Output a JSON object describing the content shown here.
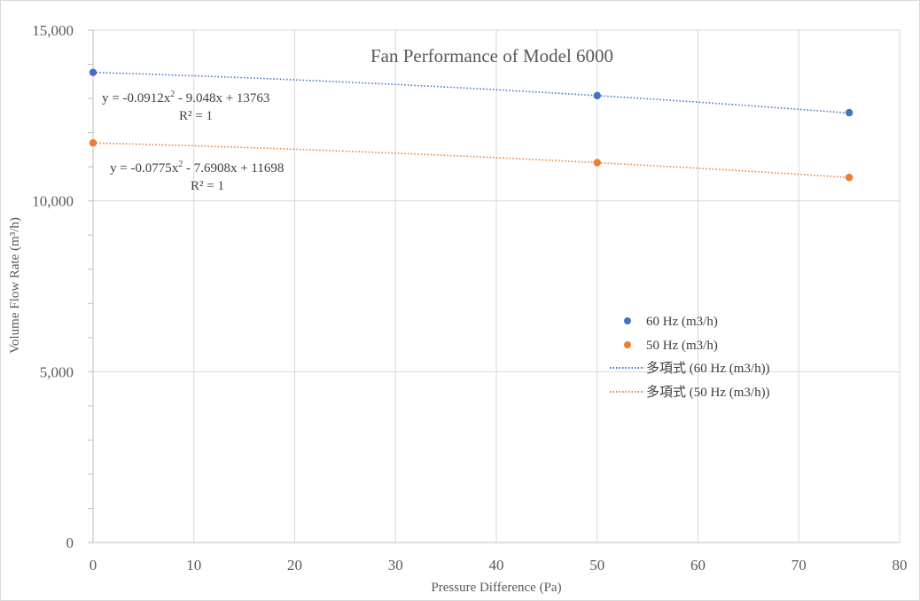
{
  "chart_data": {
    "type": "scatter",
    "title": "Fan Performance of Model 6000",
    "xlabel": "Pressure Difference (Pa)",
    "ylabel": "Volume Flow Rate (m³/h)",
    "xlim": [
      0,
      80
    ],
    "ylim": [
      0,
      15000
    ],
    "x_ticks": [
      0,
      10,
      20,
      30,
      40,
      50,
      60,
      70,
      80
    ],
    "y_ticks": [
      0,
      5000,
      10000,
      15000
    ],
    "x_tick_labels": [
      "0",
      "10",
      "20",
      "30",
      "40",
      "50",
      "60",
      "70",
      "80"
    ],
    "y_tick_labels": [
      "0",
      "5,000",
      "10,000",
      "15,000"
    ],
    "grid": true,
    "legend_position": "right",
    "series": [
      {
        "name": "60 Hz (m3/h)",
        "color": "#4472C4",
        "x": [
          0,
          50,
          75
        ],
        "y": [
          13763,
          13083,
          12584
        ]
      },
      {
        "name": "50 Hz (m3/h)",
        "color": "#ED7D31",
        "x": [
          0,
          50,
          75
        ],
        "y": [
          11698,
          11120,
          10687
        ]
      }
    ],
    "trendlines": [
      {
        "name": "多項式 (60 Hz (m3/h))",
        "color": "#4472C4",
        "type": "polynomial",
        "order": 2,
        "coefficients": [
          -0.0912,
          -9.048,
          13763
        ],
        "equation_prefix": "y = -0.0912x",
        "equation_exponent": "2",
        "equation_suffix": " - 9.048x + 13763",
        "r_squared_label": "R² = 1"
      },
      {
        "name": "多項式 (50 Hz (m3/h))",
        "color": "#ED7D31",
        "type": "polynomial",
        "order": 2,
        "coefficients": [
          -0.0775,
          -7.6908,
          11698
        ],
        "equation_prefix": "y = -0.0775x",
        "equation_exponent": "2",
        "equation_suffix": " - 7.6908x + 11698",
        "r_squared_label": "R² = 1"
      }
    ]
  }
}
